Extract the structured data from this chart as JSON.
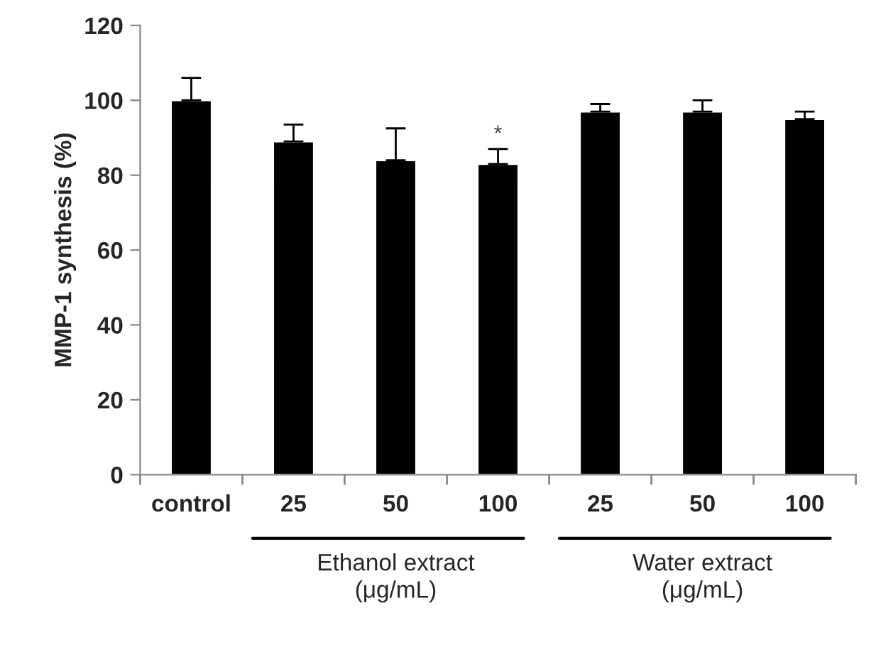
{
  "chart_data": {
    "type": "bar",
    "ylabel": "MMP-1 synthesis (%)",
    "categories": [
      "control",
      "25",
      "50",
      "100",
      "25",
      "50",
      "100"
    ],
    "values": [
      100,
      89,
      84,
      83,
      97,
      97,
      95
    ],
    "errors": [
      [
        100,
        106
      ],
      [
        89,
        93.5
      ],
      [
        84,
        92.5
      ],
      [
        83,
        87
      ],
      [
        97,
        99
      ],
      [
        97,
        100
      ],
      [
        95,
        97
      ]
    ],
    "color": "#000000",
    "ylim": [
      0,
      120
    ],
    "yticks": [
      0,
      20,
      40,
      60,
      80,
      100,
      120
    ],
    "grid": false,
    "legend": false,
    "annotations": [
      {
        "text": "*",
        "x": "100",
        "y": 87
      },
      "Ethanol extract\n(μg/mL)",
      "Water extract\n(μg/mL)"
    ]
  }
}
